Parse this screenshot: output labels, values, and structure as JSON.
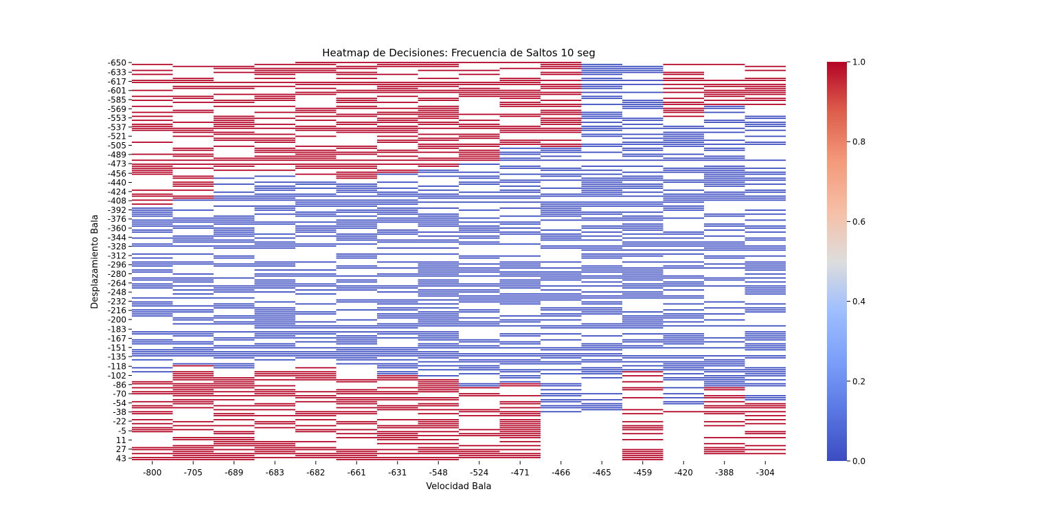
{
  "chart_data": {
    "type": "heatmap",
    "title": "Heatmap de Decisiones: Frecuencia de Saltos 10 seg",
    "xlabel": "Velocidad Bala",
    "ylabel": "Desplazamiento Bala",
    "x_categories": [
      "-800",
      "-705",
      "-689",
      "-683",
      "-682",
      "-661",
      "-631",
      "-548",
      "-524",
      "-471",
      "-466",
      "-465",
      "-459",
      "-420",
      "-388",
      "-304"
    ],
    "y_tick_labels": [
      "-650",
      "-633",
      "-617",
      "-601",
      "-585",
      "-569",
      "-553",
      "-537",
      "-521",
      "-505",
      "-489",
      "-473",
      "-456",
      "-440",
      "-424",
      "-408",
      "-392",
      "-376",
      "-360",
      "-344",
      "-328",
      "-312",
      "-296",
      "-280",
      "-264",
      "-248",
      "-232",
      "-216",
      "-200",
      "-183",
      "-167",
      "-151",
      "-135",
      "-118",
      "-102",
      "-86",
      "-70",
      "-54",
      "-38",
      "-22",
      "-5",
      "11",
      "27",
      "43"
    ],
    "y_range": [
      -650,
      49
    ],
    "columns": [
      {
        "x": "-800",
        "valid_y": [
          -650,
          49
        ],
        "zero_y": [
          -400,
          -98
        ]
      },
      {
        "x": "-705",
        "valid_y": [
          -650,
          49
        ],
        "zero_y": [
          -408,
          -118
        ]
      },
      {
        "x": "-689",
        "valid_y": [
          -650,
          49
        ],
        "zero_y": [
          -447,
          -107
        ]
      },
      {
        "x": "-683",
        "valid_y": [
          -650,
          49
        ],
        "zero_y": [
          -458,
          -107
        ]
      },
      {
        "x": "-682",
        "valid_y": [
          -650,
          49
        ],
        "zero_y": [
          -449,
          -118
        ]
      },
      {
        "x": "-661",
        "valid_y": [
          -650,
          49
        ],
        "zero_y": [
          -440,
          -112
        ]
      },
      {
        "x": "-631",
        "valid_y": [
          -650,
          49
        ],
        "zero_y": [
          -454,
          -101
        ]
      },
      {
        "x": "-548",
        "valid_y": [
          -650,
          49
        ],
        "zero_y": [
          -464,
          -98
        ]
      },
      {
        "x": "-524",
        "valid_y": [
          -650,
          49
        ],
        "zero_y": [
          -475,
          -82
        ]
      },
      {
        "x": "-471",
        "valid_y": [
          -650,
          49
        ],
        "zero_y": [
          -498,
          -86
        ]
      },
      {
        "x": "-466",
        "valid_y": [
          -650,
          -34
        ],
        "zero_y": [
          -501,
          -34
        ]
      },
      {
        "x": "-465",
        "valid_y": [
          -650,
          -34
        ],
        "zero_y": [
          -650,
          -34
        ]
      },
      {
        "x": "-459",
        "valid_y": [
          -650,
          49
        ],
        "zero_y": [
          -650,
          -108
        ]
      },
      {
        "x": "-420",
        "valid_y": [
          -650,
          -34
        ],
        "zero_y": [
          -544,
          -41
        ]
      },
      {
        "x": "-388",
        "valid_y": [
          -650,
          49
        ],
        "zero_y": [
          -574,
          -82
        ]
      },
      {
        "x": "-304",
        "valid_y": [
          -650,
          49
        ],
        "zero_y": [
          -562,
          -57
        ]
      }
    ],
    "colorbar": {
      "min": 0.0,
      "max": 1.0,
      "ticks": [
        "0.0",
        "0.2",
        "0.4",
        "0.6",
        "0.8",
        "1.0"
      ]
    },
    "colormap": "coolwarm",
    "colors": {
      "low": "#3b4cc0",
      "high": "#b40426",
      "mid": "#dddddd"
    },
    "grid": false
  }
}
